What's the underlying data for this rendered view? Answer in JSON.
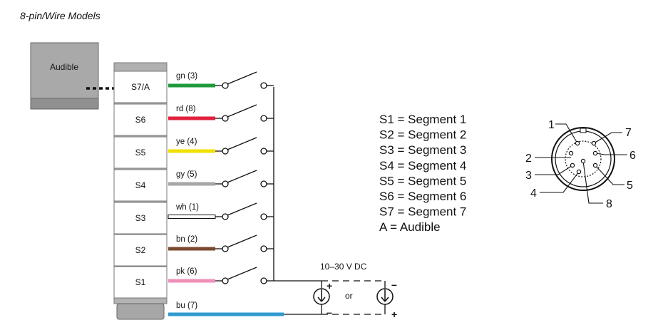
{
  "title": "8-pin/Wire Models",
  "audible_label": "Audible",
  "segments": [
    {
      "label": "S7/A",
      "wire_label": "gn (3)",
      "wire_color": "#1f9a3a"
    },
    {
      "label": "S6",
      "wire_label": "rd (8)",
      "wire_color": "#e0203a"
    },
    {
      "label": "S5",
      "wire_label": "ye (4)",
      "wire_color": "#f2e000"
    },
    {
      "label": "S4",
      "wire_label": "gy (5)",
      "wire_color": "#a6a6a6"
    },
    {
      "label": "S3",
      "wire_label": "wh (1)",
      "wire_color": "#ffffff"
    },
    {
      "label": "S2",
      "wire_label": "bn (2)",
      "wire_color": "#7b4a2e"
    },
    {
      "label": "S1",
      "wire_label": "pk (6)",
      "wire_color": "#ee8fb8"
    }
  ],
  "common_wire": {
    "label": "bu (7)",
    "color": "#2f9bd0"
  },
  "supply": {
    "label": "10–30 V DC",
    "or_label": "or",
    "plus": "+",
    "minus": "–"
  },
  "legend": [
    "S1 = Segment 1",
    "S2 = Segment 2",
    "S3 = Segment 3",
    "S4 = Segment 4",
    "S5 = Segment 5",
    "S6 = Segment 6",
    "S7 = Segment 7",
    "A = Audible"
  ],
  "connector_pins": [
    "1",
    "7",
    "2",
    "6",
    "3",
    "5",
    "4",
    "8"
  ]
}
